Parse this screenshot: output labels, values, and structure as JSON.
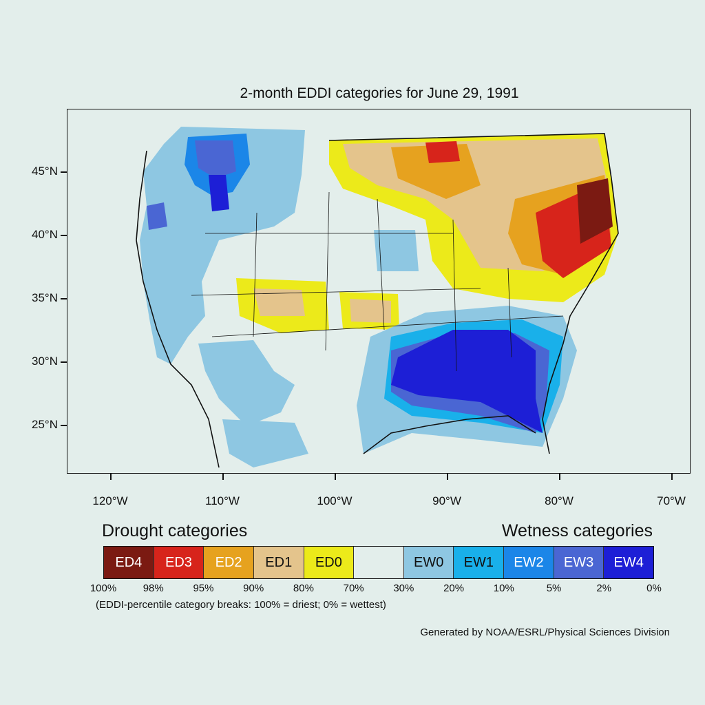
{
  "title": "2-month EDDI categories for June 29, 1991",
  "axes": {
    "lat_labels": [
      {
        "label": "45°N",
        "value": 45
      },
      {
        "label": "40°N",
        "value": 40
      },
      {
        "label": "35°N",
        "value": 35
      },
      {
        "label": "30°N",
        "value": 30
      },
      {
        "label": "25°N",
        "value": 25
      }
    ],
    "lon_labels": [
      {
        "label": "120°W",
        "value": -120
      },
      {
        "label": "110°W",
        "value": -110
      },
      {
        "label": "100°W",
        "value": -100
      },
      {
        "label": "90°W",
        "value": -90
      },
      {
        "label": "80°W",
        "value": -80
      },
      {
        "label": "70°W",
        "value": -70
      }
    ]
  },
  "legend": {
    "drought_heading": "Drought categories",
    "wetness_heading": "Wetness categories",
    "categories": [
      {
        "code": "ED4",
        "color": "#7b1a12",
        "text_color": "#ffffff"
      },
      {
        "code": "ED3",
        "color": "#d7241b",
        "text_color": "#ffffff"
      },
      {
        "code": "ED2",
        "color": "#e6a21f",
        "text_color": "#ffffff"
      },
      {
        "code": "ED1",
        "color": "#e4c48c",
        "text_color": "#111111"
      },
      {
        "code": "ED0",
        "color": "#ecea1a",
        "text_color": "#111111"
      },
      {
        "code": "",
        "color": "#e3eeeb",
        "text_color": "#111111"
      },
      {
        "code": "EW0",
        "color": "#8ec7e2",
        "text_color": "#111111"
      },
      {
        "code": "EW1",
        "color": "#19b0ea",
        "text_color": "#111111"
      },
      {
        "code": "EW2",
        "color": "#1b86e8",
        "text_color": "#ffffff"
      },
      {
        "code": "EW3",
        "color": "#4a66d3",
        "text_color": "#ffffff"
      },
      {
        "code": "EW4",
        "color": "#1d1fd6",
        "text_color": "#ffffff"
      }
    ],
    "breaks": [
      "100%",
      "98%",
      "95%",
      "90%",
      "80%",
      "70%",
      "30%",
      "20%",
      "10%",
      "5%",
      "2%",
      "0%"
    ],
    "breaks_note": "(EDDI-percentile category breaks: 100% = driest; 0% = wettest)"
  },
  "credit": "Generated by NOAA/ESRL/Physical Sciences Division"
}
